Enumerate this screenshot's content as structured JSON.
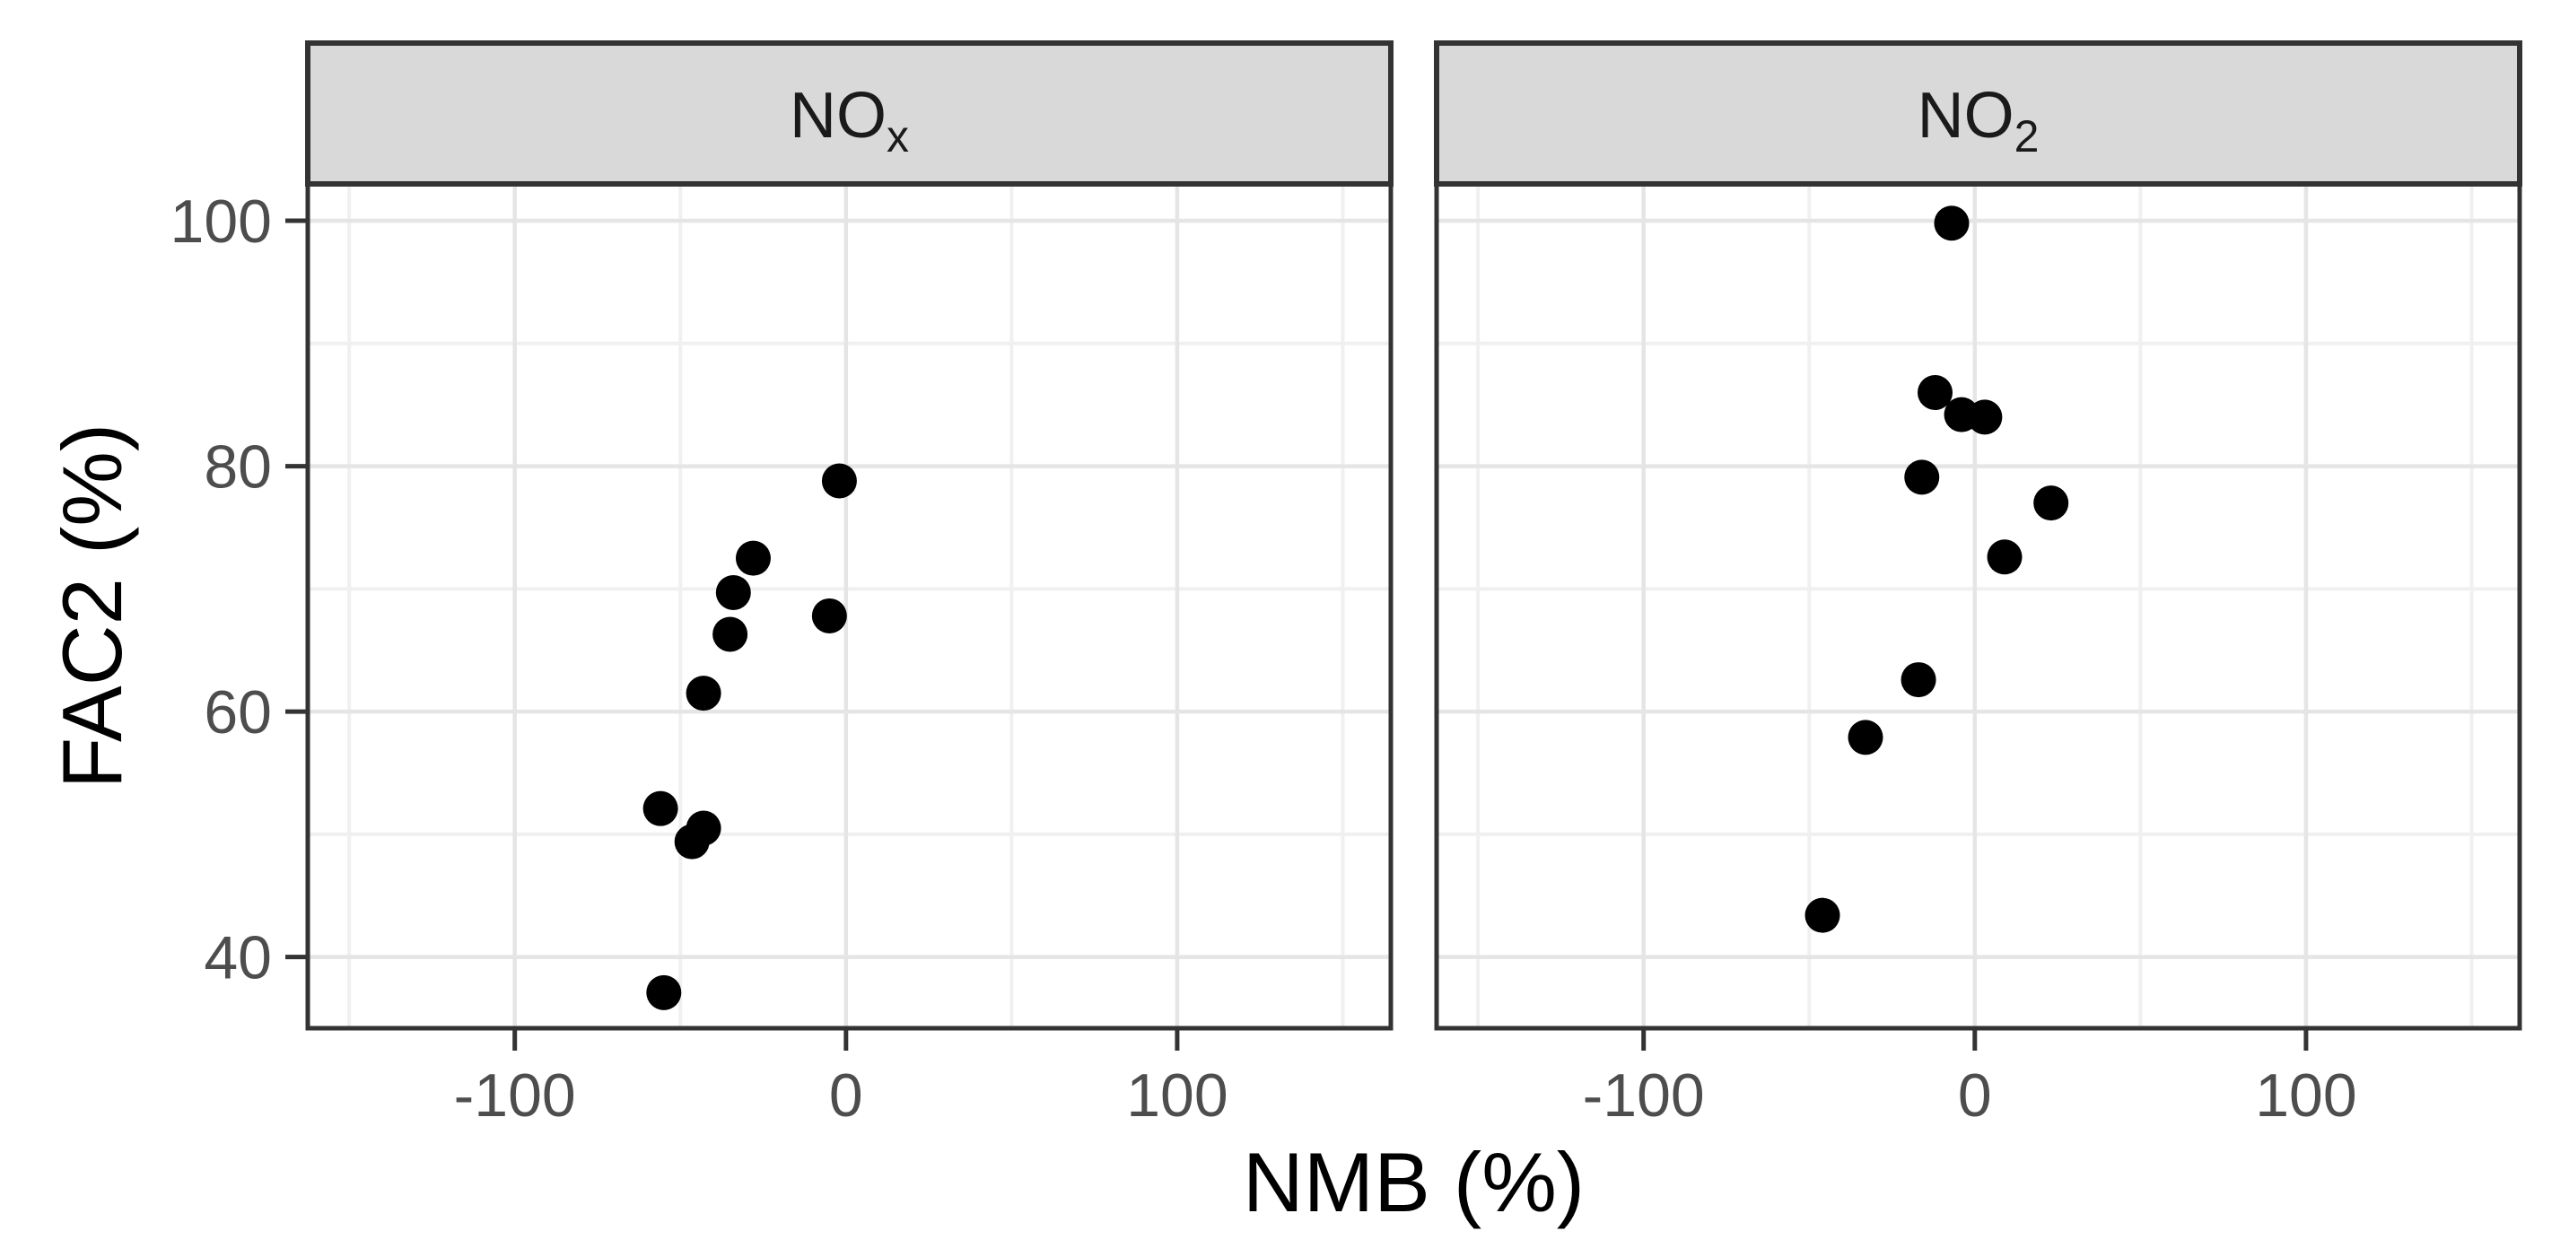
{
  "chart_data": {
    "type": "scatter",
    "title": "",
    "xlabel": "NMB (%)",
    "ylabel": "FAC2 (%)",
    "legend": "none",
    "grid": "major+minor",
    "point_shape": "filled-circle",
    "xlim": [
      -162.5,
      164.5
    ],
    "ylim": [
      34.2,
      103.0
    ],
    "x_ticks": {
      "values": [
        -100,
        0,
        100
      ],
      "labels": [
        "-100",
        "0",
        "100"
      ]
    },
    "y_ticks": {
      "values": [
        40,
        60,
        80,
        100
      ],
      "labels": [
        "40",
        "60",
        "80",
        "100"
      ]
    },
    "x_minor_ticks": [
      -150,
      -50,
      50,
      150
    ],
    "y_minor_ticks": [
      50,
      70,
      90
    ],
    "facets": [
      {
        "label_base": "NO",
        "label_sub": "x",
        "points": [
          [
            -2,
            78.8
          ],
          [
            -28,
            72.5
          ],
          [
            -34,
            69.7
          ],
          [
            -5,
            67.8
          ],
          [
            -35,
            66.3
          ],
          [
            -43,
            61.5
          ],
          [
            -56,
            52.1
          ],
          [
            -43,
            50.5
          ],
          [
            -46.5,
            49.4
          ],
          [
            -55,
            37.1
          ]
        ]
      },
      {
        "label_base": "NO",
        "label_sub": "2",
        "points": [
          [
            -7,
            99.8
          ],
          [
            -12,
            86.0
          ],
          [
            -4,
            84.2
          ],
          [
            3,
            84.0
          ],
          [
            -16,
            79.1
          ],
          [
            23,
            77.0
          ],
          [
            9,
            72.6
          ],
          [
            -17,
            62.6
          ],
          [
            -33,
            57.9
          ],
          [
            -46,
            43.4
          ]
        ]
      }
    ]
  },
  "style": {
    "background": "#ffffff",
    "point_color": "#000000",
    "strip_fill": "#d9d9d9",
    "border_color": "#333333",
    "grid_major_color": "#e5e5e5",
    "grid_minor_color": "#f0f0f0",
    "tick_mark_color": "#333333",
    "tick_label_color": "#4d4d4d",
    "axis_title_color": "#000000",
    "strip_text_color": "#1a1a1a"
  }
}
